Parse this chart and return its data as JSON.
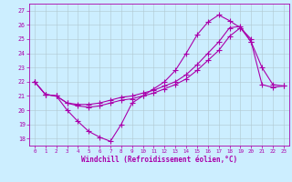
{
  "xlabel": "Windchill (Refroidissement éolien,°C)",
  "bg_color": "#cceeff",
  "grid_color": "#b0c8d0",
  "line_color": "#aa00aa",
  "xlim": [
    -0.5,
    23.5
  ],
  "ylim": [
    17.5,
    27.5
  ],
  "xticks": [
    0,
    1,
    2,
    3,
    4,
    5,
    6,
    7,
    8,
    9,
    10,
    11,
    12,
    13,
    14,
    15,
    16,
    17,
    18,
    19,
    20,
    21,
    22,
    23
  ],
  "yticks": [
    18,
    19,
    20,
    21,
    22,
    23,
    24,
    25,
    26,
    27
  ],
  "s1_x": [
    0,
    1,
    2,
    3,
    4,
    5,
    6,
    7,
    8,
    9,
    10,
    11,
    12,
    13,
    14,
    15,
    16,
    17,
    18,
    19,
    20
  ],
  "s1_y": [
    22.0,
    21.1,
    21.0,
    20.0,
    19.2,
    18.5,
    18.1,
    17.8,
    19.0,
    20.5,
    21.0,
    21.5,
    22.0,
    22.8,
    24.0,
    25.3,
    26.2,
    26.7,
    26.3,
    25.8,
    25.0
  ],
  "s2_x": [
    0,
    1,
    2,
    3,
    4,
    5,
    6,
    7,
    8,
    9,
    10,
    11,
    12,
    13,
    14,
    15,
    16,
    17,
    18,
    19,
    20,
    21,
    22,
    23
  ],
  "s2_y": [
    22.0,
    21.1,
    21.0,
    20.5,
    20.4,
    20.4,
    20.5,
    20.7,
    20.9,
    21.0,
    21.2,
    21.4,
    21.7,
    22.0,
    22.5,
    23.2,
    24.0,
    24.8,
    25.8,
    25.9,
    24.8,
    23.0,
    21.8,
    21.7
  ],
  "s3_x": [
    0,
    1,
    2,
    3,
    4,
    5,
    6,
    7,
    8,
    9,
    10,
    11,
    12,
    13,
    14,
    15,
    16,
    17,
    18,
    19,
    20,
    21,
    22,
    23
  ],
  "s3_y": [
    22.0,
    21.1,
    21.0,
    20.5,
    20.3,
    20.2,
    20.3,
    20.5,
    20.7,
    20.8,
    21.0,
    21.2,
    21.5,
    21.8,
    22.2,
    22.8,
    23.5,
    24.2,
    25.2,
    25.8,
    24.8,
    21.8,
    21.6,
    21.7
  ]
}
